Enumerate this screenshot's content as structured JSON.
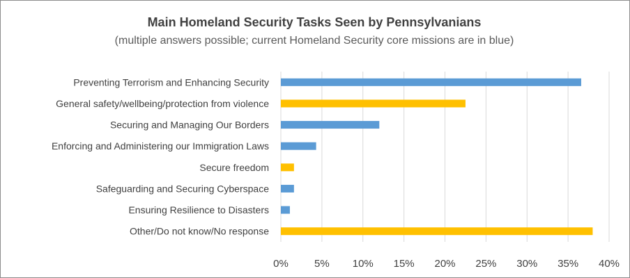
{
  "chart_data": {
    "type": "bar",
    "orientation": "horizontal",
    "title": "Main Homeland Security Tasks Seen by Pennsylvanians",
    "subtitle": "(multiple answers possible; current Homeland Security core missions are in blue)",
    "categories": [
      "Preventing Terrorism and Enhancing Security",
      "General safety/wellbeing/protection from violence",
      "Securing and Managing Our Borders",
      "Enforcing and Administering our Immigration Laws",
      "Secure freedom",
      "Safeguarding and Securing Cyberspace",
      "Ensuring Resilience to Disasters",
      "Other/Do not know/No response"
    ],
    "values": [
      36.6,
      22.5,
      12.0,
      4.3,
      1.6,
      1.6,
      1.1,
      38.0
    ],
    "bar_colors": [
      "#5b9bd5",
      "#ffc000",
      "#5b9bd5",
      "#5b9bd5",
      "#ffc000",
      "#5b9bd5",
      "#5b9bd5",
      "#ffc000"
    ],
    "xlim": [
      0,
      40
    ],
    "x_ticks": [
      "0%",
      "5%",
      "10%",
      "15%",
      "20%",
      "25%",
      "30%",
      "35%",
      "40%"
    ],
    "xlabel": "",
    "ylabel": "",
    "grid": "vertical",
    "legend": "none"
  }
}
